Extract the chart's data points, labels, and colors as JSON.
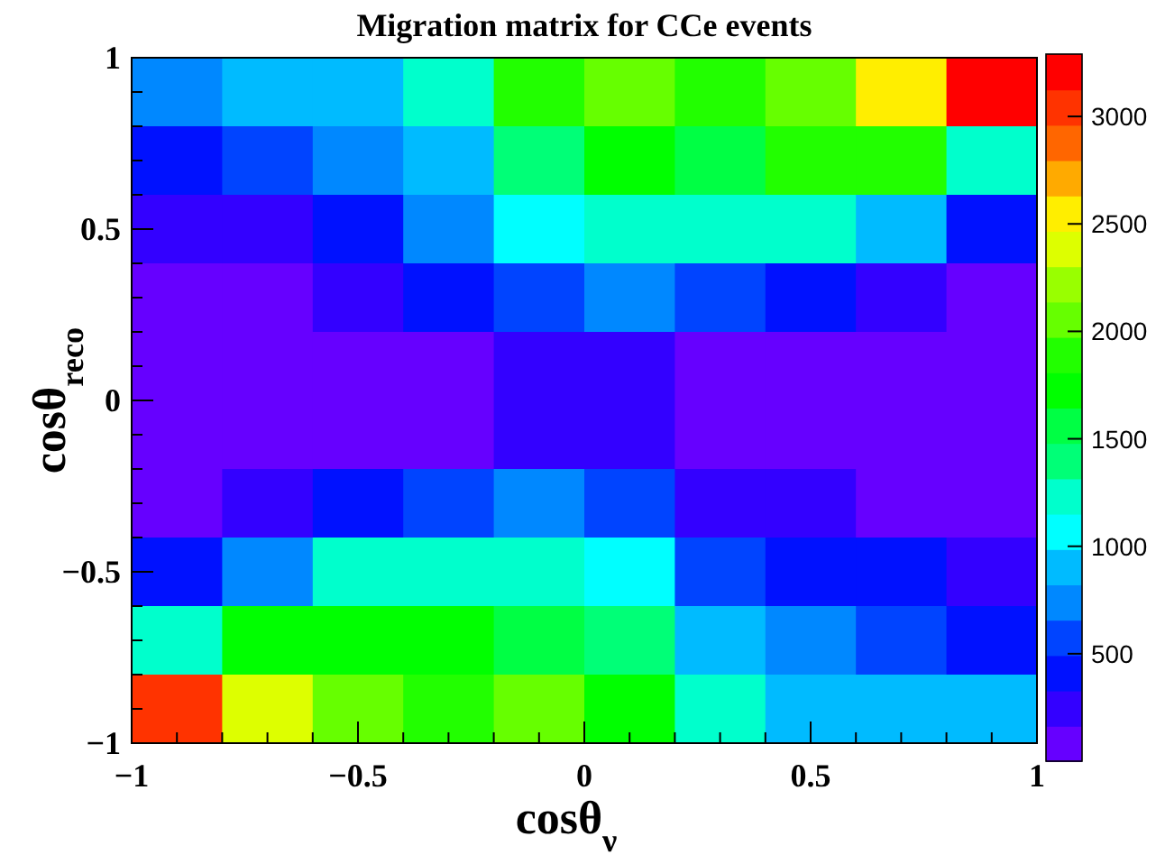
{
  "chart_data": {
    "type": "heatmap",
    "title": "Migration matrix for CCe events",
    "xlabel": "cosθ$_{ν}$",
    "ylabel": "cosθ$_{reco}$",
    "xlim": [
      -1,
      1
    ],
    "ylim": [
      -1,
      1
    ],
    "xticks": [
      {
        "value": -1,
        "label": "−1"
      },
      {
        "value": -0.9,
        "label": null
      },
      {
        "value": -0.8,
        "label": null
      },
      {
        "value": -0.7,
        "label": null
      },
      {
        "value": -0.6,
        "label": null
      },
      {
        "value": -0.5,
        "label": "−0.5"
      },
      {
        "value": -0.4,
        "label": null
      },
      {
        "value": -0.3,
        "label": null
      },
      {
        "value": -0.2,
        "label": null
      },
      {
        "value": -0.1,
        "label": null
      },
      0,
      {
        "value": 0.1,
        "label": null
      },
      {
        "value": 0.2,
        "label": null
      },
      {
        "value": 0.3,
        "label": null
      },
      {
        "value": 0.4,
        "label": null
      },
      0.5,
      {
        "value": 0.6,
        "label": null
      },
      {
        "value": 0.7,
        "label": null
      },
      {
        "value": 0.8,
        "label": null
      },
      {
        "value": 0.9,
        "label": null
      },
      1
    ],
    "yticks": [
      {
        "value": -1,
        "label": "−1"
      },
      {
        "value": -0.9,
        "label": null
      },
      {
        "value": -0.8,
        "label": null
      },
      {
        "value": -0.7,
        "label": null
      },
      {
        "value": -0.6,
        "label": null
      },
      {
        "value": -0.5,
        "label": "−0.5"
      },
      {
        "value": -0.4,
        "label": null
      },
      {
        "value": -0.3,
        "label": null
      },
      {
        "value": -0.2,
        "label": null
      },
      {
        "value": -0.1,
        "label": null
      },
      0,
      {
        "value": 0.1,
        "label": null
      },
      {
        "value": 0.2,
        "label": null
      },
      {
        "value": 0.3,
        "label": null
      },
      {
        "value": 0.4,
        "label": null
      },
      0.5,
      {
        "value": 0.6,
        "label": null
      },
      {
        "value": 0.7,
        "label": null
      },
      {
        "value": 0.8,
        "label": null
      },
      {
        "value": 0.9,
        "label": null
      },
      1
    ],
    "cells": [
      [
        740,
        900,
        900,
        1230,
        1890,
        2060,
        1890,
        2060,
        2550,
        3210
      ],
      [
        410,
        580,
        740,
        900,
        1400,
        1730,
        1560,
        1890,
        1890,
        1230
      ],
      [
        250,
        250,
        410,
        740,
        1070,
        1230,
        1230,
        1230,
        900,
        410
      ],
      [
        80,
        80,
        250,
        410,
        580,
        740,
        580,
        410,
        250,
        80
      ],
      [
        80,
        80,
        80,
        80,
        250,
        250,
        80,
        80,
        80,
        80
      ],
      [
        80,
        80,
        80,
        80,
        250,
        250,
        80,
        80,
        80,
        80
      ],
      [
        80,
        250,
        410,
        580,
        740,
        580,
        250,
        250,
        80,
        80
      ],
      [
        410,
        740,
        1230,
        1230,
        1230,
        1070,
        580,
        410,
        410,
        250
      ],
      [
        1230,
        1730,
        1730,
        1730,
        1560,
        1400,
        900,
        740,
        580,
        410
      ],
      [
        3040,
        2390,
        2060,
        1890,
        2060,
        1730,
        1230,
        900,
        900,
        900
      ]
    ],
    "clim": [
      0,
      3290
    ],
    "cticks": [
      500,
      1000,
      1500,
      2000,
      2500,
      3000
    ],
    "colors": [
      "#6600ff",
      "#3300ff",
      "#0011ff",
      "#0044ff",
      "#0088ff",
      "#00bbff",
      "#00ffff",
      "#00ffcc",
      "#00ff77",
      "#00ff44",
      "#00ff00",
      "#22ff00",
      "#66ff00",
      "#99ff00",
      "#ddff00",
      "#ffee00",
      "#ffaa00",
      "#ff6600",
      "#ff3300",
      "#ff0000"
    ]
  }
}
